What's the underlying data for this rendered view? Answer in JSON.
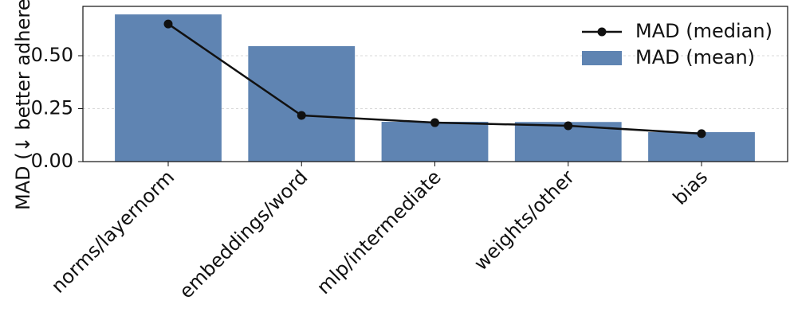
{
  "chart_data": {
    "type": "bar",
    "ylabel": "MAD (↓ better adherence)",
    "categories": [
      "norms/layernorm",
      "embeddings/word",
      "mlp/intermediate",
      "weights/other",
      "bias"
    ],
    "series": [
      {
        "name": "MAD (median)",
        "type": "line",
        "color": "#111111",
        "values": [
          0.65,
          0.218,
          0.184,
          0.169,
          0.132
        ]
      },
      {
        "name": "MAD (mean)",
        "type": "bar",
        "color": "#5f84b2",
        "values": [
          0.695,
          0.545,
          0.188,
          0.187,
          0.139
        ]
      }
    ],
    "ylim": [
      0,
      0.733
    ],
    "yticks": [
      {
        "value": 0,
        "label": "0.00"
      },
      {
        "value": 0.25,
        "label": "0.25"
      },
      {
        "value": 0.5,
        "label": "0.50"
      }
    ],
    "grid": true,
    "legend": "upper-right"
  }
}
